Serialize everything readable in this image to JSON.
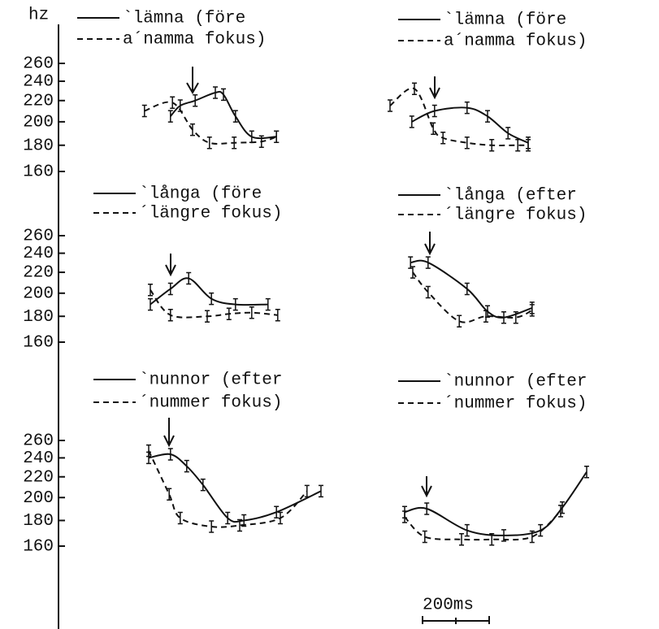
{
  "y_axis_label": "hz",
  "scale_bar_label": "200ms",
  "chart_data": [
    {
      "type": "line",
      "ylim": [
        160,
        260
      ],
      "yticks": [
        160,
        180,
        200,
        220,
        240,
        260
      ],
      "log_scale": true,
      "xlim": [
        0,
        650
      ],
      "series": [
        {
          "name": "`lämna (före",
          "style": "solid",
          "color": "#111",
          "x": [
            112,
            142,
            188,
            250,
            275,
            312,
            362,
            438
          ],
          "values": [
            205,
            215,
            220,
            228,
            226,
            205,
            187,
            187
          ]
        },
        {
          "name": "a´namma fokus)",
          "style": "dashed",
          "color": "#111",
          "x": [
            32,
            118,
            180,
            232,
            308,
            392,
            438
          ],
          "values": [
            210,
            218,
            193,
            182,
            182,
            183,
            187
          ]
        }
      ]
    },
    {
      "type": "line",
      "ylim": [
        160,
        260
      ],
      "log_scale": true,
      "xlim": [
        0,
        650
      ],
      "series": [
        {
          "name": "`lämna (före",
          "style": "solid",
          "color": "#111",
          "x": [
            92,
            162,
            262,
            325,
            388,
            450
          ],
          "values": [
            200,
            210,
            213,
            205,
            190,
            182
          ]
        },
        {
          "name": "a´namma fokus)",
          "style": "dashed",
          "color": "#111",
          "x": [
            25,
            100,
            158,
            188,
            262,
            338,
            418,
            450
          ],
          "values": [
            215,
            232,
            194,
            186,
            182,
            180,
            180,
            180
          ]
        }
      ]
    },
    {
      "type": "line",
      "ylim": [
        160,
        260
      ],
      "yticks": [
        160,
        180,
        200,
        220,
        240,
        260
      ],
      "log_scale": true,
      "xlim": [
        0,
        650
      ],
      "series": [
        {
          "name": "`långa (före",
          "style": "solid",
          "color": "#111",
          "x": [
            50,
            112,
            168,
            238,
            312,
            412
          ],
          "values": [
            190,
            204,
            214,
            195,
            190,
            190
          ]
        },
        {
          "name": "´längre fokus)",
          "style": "dashed",
          "color": "#111",
          "x": [
            50,
            112,
            225,
            292,
            362,
            442
          ],
          "values": [
            203,
            181,
            180,
            182,
            183,
            181
          ]
        }
      ]
    },
    {
      "type": "line",
      "ylim": [
        160,
        260
      ],
      "log_scale": true,
      "xlim": [
        0,
        650
      ],
      "series": [
        {
          "name": "`långa (efter",
          "style": "solid",
          "color": "#111",
          "x": [
            88,
            142,
            262,
            325,
            375,
            462
          ],
          "values": [
            230,
            230,
            204,
            184,
            179,
            187
          ]
        },
        {
          "name": "´längre fokus)",
          "style": "dashed",
          "color": "#111",
          "x": [
            95,
            142,
            238,
            320,
            412,
            462
          ],
          "values": [
            220,
            201,
            176,
            180,
            179,
            185
          ]
        }
      ]
    },
    {
      "type": "line",
      "ylim": [
        160,
        260
      ],
      "yticks": [
        160,
        180,
        200,
        220,
        240,
        260
      ],
      "log_scale": true,
      "xlim": [
        0,
        650
      ],
      "series": [
        {
          "name": "`nunnor (efter",
          "style": "solid",
          "color": "#111",
          "x": [
            45,
            112,
            162,
            212,
            288,
            338,
            438,
            575
          ],
          "values": [
            240,
            244,
            231,
            212,
            182,
            180,
            187,
            206
          ]
        },
        {
          "name": "´nummer fokus)",
          "style": "dashed",
          "color": "#111",
          "x": [
            45,
            108,
            142,
            238,
            325,
            450,
            532
          ],
          "values": [
            248,
            203,
            182,
            175,
            176,
            182,
            206
          ]
        }
      ]
    },
    {
      "type": "line",
      "ylim": [
        160,
        260
      ],
      "log_scale": true,
      "xlim": [
        0,
        650
      ],
      "series": [
        {
          "name": "`nunnor (efter",
          "style": "solid",
          "color": "#111",
          "x": [
            70,
            138,
            262,
            375,
            488,
            555,
            630
          ],
          "values": [
            187,
            190,
            172,
            168,
            172,
            191,
            225
          ]
        },
        {
          "name": "´nummer fokus)",
          "style": "dashed",
          "color": "#111",
          "x": [
            70,
            132,
            245,
            338,
            462,
            550
          ],
          "values": [
            183,
            167,
            165,
            165,
            167,
            188
          ]
        }
      ]
    }
  ]
}
